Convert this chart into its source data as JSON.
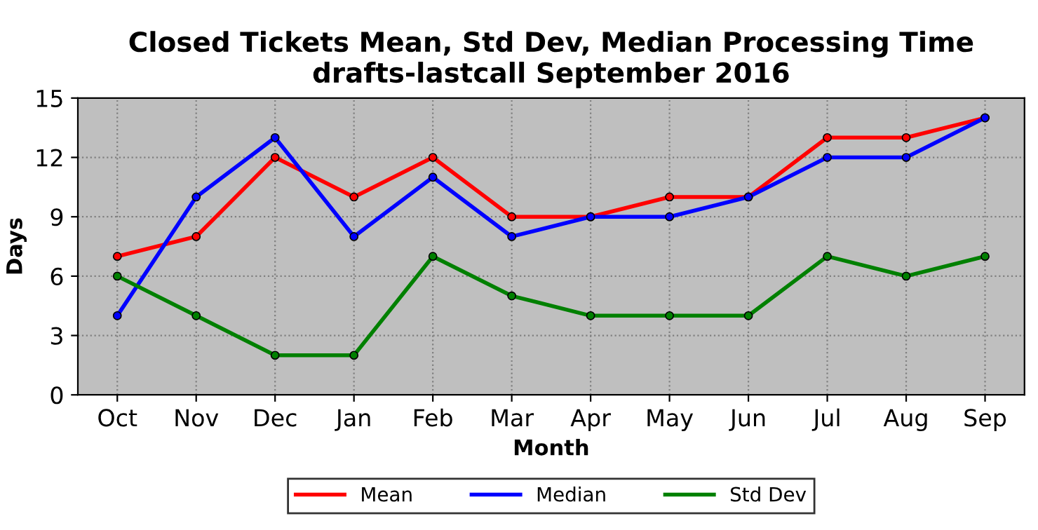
{
  "chart_data": {
    "type": "line",
    "title": "Closed Tickets Mean, Std Dev, Median Processing Time\ndrafts-lastcall September 2016",
    "xlabel": "Month",
    "ylabel": "Days",
    "categories": [
      "Oct",
      "Nov",
      "Dec",
      "Jan",
      "Feb",
      "Mar",
      "Apr",
      "May",
      "Jun",
      "Jul",
      "Aug",
      "Sep"
    ],
    "series": [
      {
        "name": "Mean",
        "color": "#ff0000",
        "values": [
          7,
          8,
          12,
          10,
          12,
          9,
          9,
          10,
          10,
          13,
          13,
          14
        ]
      },
      {
        "name": "Median",
        "color": "#0000ff",
        "values": [
          4,
          10,
          13,
          8,
          11,
          8,
          9,
          9,
          10,
          12,
          12,
          14
        ]
      },
      {
        "name": "Std Dev",
        "color": "#008000",
        "values": [
          6,
          4,
          2,
          2,
          7,
          5,
          4,
          4,
          4,
          7,
          6,
          7
        ]
      }
    ],
    "ylim": [
      0,
      15
    ],
    "yticks": [
      0,
      3,
      6,
      9,
      12,
      15
    ],
    "grid": true,
    "legend": "bottom",
    "marker": "circle",
    "line_style": "solid"
  }
}
